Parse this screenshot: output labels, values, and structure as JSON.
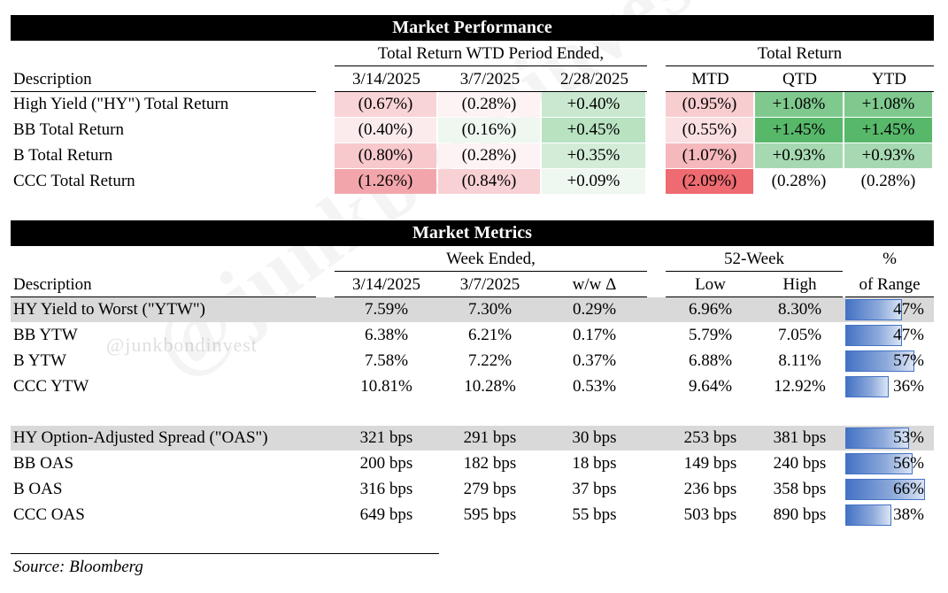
{
  "watermark": "@junkbondinvest",
  "performance": {
    "title": "Market Performance",
    "group_wtd": "Total Return WTD Period Ended,",
    "group_total": "Total Return",
    "desc_header": "Description",
    "col_headers": [
      "3/14/2025",
      "3/7/2025",
      "2/28/2025",
      "MTD",
      "QTD",
      "YTD"
    ],
    "rows": [
      {
        "label": "High Yield (\"HY\") Total Return",
        "values": [
          "(0.67%)",
          "(0.28%)",
          "+0.40%",
          "(0.95%)",
          "+1.08%",
          "+1.08%"
        ]
      },
      {
        "label": "BB Total Return",
        "values": [
          "(0.40%)",
          "(0.16%)",
          "+0.45%",
          "(0.55%)",
          "+1.45%",
          "+1.45%"
        ]
      },
      {
        "label": "B Total Return",
        "values": [
          "(0.80%)",
          "(0.28%)",
          "+0.35%",
          "(1.07%)",
          "+0.93%",
          "+0.93%"
        ]
      },
      {
        "label": "CCC Total Return",
        "values": [
          "(1.26%)",
          "(0.84%)",
          "+0.09%",
          "(2.09%)",
          "(0.28%)",
          "(0.28%)"
        ]
      }
    ],
    "cell_colors": [
      [
        "#f9d4d6",
        "#fdf3f4",
        "#c9e8cf",
        "#f8cdd0",
        "#7fc98f",
        "#7fc98f"
      ],
      [
        "#fcebed",
        "#eef7f0",
        "#b9e2c1",
        "#fbe0e2",
        "#57b86a",
        "#57b86a"
      ],
      [
        "#f7c8cc",
        "#fdf3f4",
        "#d3ecd8",
        "#f5b8bc",
        "#a6d9b1",
        "#a6d9b1"
      ],
      [
        "#f2a6ab",
        "#f8d1d4",
        "#eef7f0",
        "#ee6b71",
        "#ffffff",
        "#ffffff"
      ]
    ]
  },
  "metrics": {
    "title": "Market Metrics",
    "group_week": "Week Ended,",
    "group_52": "52-Week",
    "pct_header_1": "%",
    "pct_header_2": "of Range",
    "desc_header": "Description",
    "col_headers": [
      "3/14/2025",
      "3/7/2025",
      "w/w Δ",
      "Low",
      "High"
    ],
    "ytw_rows": [
      {
        "label": "HY Yield to Worst (\"YTW\")",
        "values": [
          "7.59%",
          "7.30%",
          "0.29%",
          "6.96%",
          "8.30%"
        ],
        "pct": "47%",
        "pct_value": 0.47,
        "shaded": true
      },
      {
        "label": "BB YTW",
        "values": [
          "6.38%",
          "6.21%",
          "0.17%",
          "5.79%",
          "7.05%"
        ],
        "pct": "47%",
        "pct_value": 0.47,
        "shaded": false
      },
      {
        "label": "B YTW",
        "values": [
          "7.58%",
          "7.22%",
          "0.37%",
          "6.88%",
          "8.11%"
        ],
        "pct": "57%",
        "pct_value": 0.57,
        "shaded": false
      },
      {
        "label": "CCC YTW",
        "values": [
          "10.81%",
          "10.28%",
          "0.53%",
          "9.64%",
          "12.92%"
        ],
        "pct": "36%",
        "pct_value": 0.36,
        "shaded": false
      }
    ],
    "oas_rows": [
      {
        "label": "HY Option-Adjusted Spread (\"OAS\")",
        "values": [
          "321 bps",
          "291 bps",
          "30 bps",
          "253 bps",
          "381 bps"
        ],
        "pct": "53%",
        "pct_value": 0.53,
        "shaded": true
      },
      {
        "label": "BB OAS",
        "values": [
          "200 bps",
          "182 bps",
          "18 bps",
          "149 bps",
          "240 bps"
        ],
        "pct": "56%",
        "pct_value": 0.56,
        "shaded": false
      },
      {
        "label": "B OAS",
        "values": [
          "316 bps",
          "279 bps",
          "37 bps",
          "236 bps",
          "358 bps"
        ],
        "pct": "66%",
        "pct_value": 0.66,
        "shaded": false
      },
      {
        "label": "CCC OAS",
        "values": [
          "649 bps",
          "595 bps",
          "55 bps",
          "503 bps",
          "890 bps"
        ],
        "pct": "38%",
        "pct_value": 0.38,
        "shaded": false
      }
    ]
  },
  "source": "Source: Bloomberg"
}
